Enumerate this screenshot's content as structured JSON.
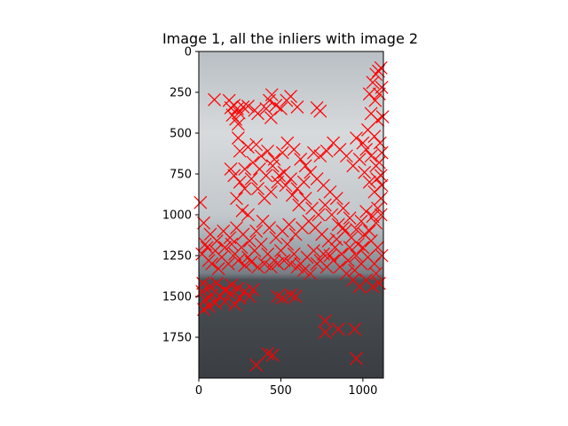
{
  "chart_data": {
    "type": "scatter",
    "title": "Image 1, all the inliers with image 2",
    "xlabel": "",
    "ylabel": "",
    "xlim": [
      0,
      1125
    ],
    "ylim": [
      2000,
      0
    ],
    "y_inverted": true,
    "grid": false,
    "marker": "x",
    "marker_color": "#ff0000",
    "x_ticks": [
      0,
      500,
      1000
    ],
    "x_tick_labels": [
      "0",
      "500",
      "1000"
    ],
    "y_ticks": [
      0,
      250,
      500,
      750,
      1000,
      1250,
      1500,
      1750
    ],
    "y_tick_labels": [
      "0",
      "250",
      "500",
      "750",
      "1000",
      "1250",
      "1500",
      "1750"
    ],
    "background_image": {
      "description": "photo",
      "sky_color": "#c9ced1",
      "horizon_color": "#8e959c",
      "ground_color": "#3f4347"
    },
    "series": [
      {
        "points": [
          [
            95,
            295
          ],
          [
            185,
            300
          ],
          [
            195,
            345
          ],
          [
            215,
            330
          ],
          [
            235,
            350
          ],
          [
            245,
            375
          ],
          [
            205,
            390
          ],
          [
            225,
            415
          ],
          [
            240,
            445
          ],
          [
            270,
            340
          ],
          [
            300,
            335
          ],
          [
            340,
            360
          ],
          [
            360,
            380
          ],
          [
            410,
            350
          ],
          [
            430,
            300
          ],
          [
            445,
            265
          ],
          [
            470,
            330
          ],
          [
            500,
            350
          ],
          [
            440,
            405
          ],
          [
            535,
            300
          ],
          [
            560,
            275
          ],
          [
            600,
            340
          ],
          [
            720,
            345
          ],
          [
            740,
            365
          ],
          [
            1080,
            140
          ],
          [
            1095,
            120
          ],
          [
            1110,
            100
          ],
          [
            1060,
            190
          ],
          [
            1040,
            260
          ],
          [
            1075,
            300
          ],
          [
            1100,
            260
          ],
          [
            1115,
            220
          ],
          [
            1050,
            380
          ],
          [
            1090,
            420
          ],
          [
            1120,
            400
          ],
          [
            1030,
            480
          ],
          [
            1070,
            520
          ],
          [
            1105,
            560
          ],
          [
            1000,
            560
          ],
          [
            960,
            530
          ],
          [
            240,
            530
          ],
          [
            300,
            585
          ],
          [
            250,
            610
          ],
          [
            195,
            720
          ],
          [
            215,
            760
          ],
          [
            250,
            800
          ],
          [
            280,
            840
          ],
          [
            230,
            900
          ],
          [
            265,
            975
          ],
          [
            300,
            1000
          ],
          [
            350,
            570
          ],
          [
            380,
            640
          ],
          [
            420,
            610
          ],
          [
            460,
            660
          ],
          [
            510,
            620
          ],
          [
            540,
            560
          ],
          [
            580,
            600
          ],
          [
            620,
            660
          ],
          [
            650,
            700
          ],
          [
            700,
            620
          ],
          [
            740,
            640
          ],
          [
            780,
            610
          ],
          [
            820,
            560
          ],
          [
            860,
            600
          ],
          [
            900,
            640
          ],
          [
            940,
            700
          ],
          [
            980,
            660
          ],
          [
            1010,
            740
          ],
          [
            1040,
            800
          ],
          [
            1070,
            860
          ],
          [
            1110,
            900
          ],
          [
            1090,
            960
          ],
          [
            1060,
            1010
          ],
          [
            1020,
            980
          ],
          [
            990,
            1040
          ],
          [
            960,
            1090
          ],
          [
            920,
            1020
          ],
          [
            880,
            960
          ],
          [
            840,
            900
          ],
          [
            800,
            860
          ],
          [
            760,
            820
          ],
          [
            720,
            780
          ],
          [
            680,
            740
          ],
          [
            640,
            800
          ],
          [
            600,
            840
          ],
          [
            560,
            780
          ],
          [
            520,
            740
          ],
          [
            480,
            800
          ],
          [
            440,
            860
          ],
          [
            400,
            900
          ],
          [
            360,
            840
          ],
          [
            320,
            780
          ],
          [
            280,
            720
          ],
          [
            330,
            680
          ],
          [
            370,
            720
          ],
          [
            410,
            760
          ],
          [
            450,
            700
          ],
          [
            490,
            760
          ],
          [
            530,
            820
          ],
          [
            570,
            880
          ],
          [
            610,
            940
          ],
          [
            650,
            900
          ],
          [
            690,
            960
          ],
          [
            730,
            1000
          ],
          [
            770,
            940
          ],
          [
            810,
            1000
          ],
          [
            850,
            1060
          ],
          [
            890,
            1100
          ],
          [
            930,
            1140
          ],
          [
            970,
            1180
          ],
          [
            1010,
            1120
          ],
          [
            1050,
            1160
          ],
          [
            1090,
            1200
          ],
          [
            1115,
            1250
          ],
          [
            1070,
            1300
          ],
          [
            1030,
            1260
          ],
          [
            990,
            1300
          ],
          [
            950,
            1340
          ],
          [
            910,
            1280
          ],
          [
            870,
            1240
          ],
          [
            830,
            1200
          ],
          [
            790,
            1160
          ],
          [
            750,
            1120
          ],
          [
            710,
            1080
          ],
          [
            670,
            1040
          ],
          [
            630,
            1080
          ],
          [
            590,
            1120
          ],
          [
            550,
            1060
          ],
          [
            510,
            1100
          ],
          [
            470,
            1140
          ],
          [
            430,
            1080
          ],
          [
            390,
            1040
          ],
          [
            350,
            1100
          ],
          [
            310,
            1160
          ],
          [
            270,
            1120
          ],
          [
            230,
            1080
          ],
          [
            190,
            1140
          ],
          [
            150,
            1100
          ],
          [
            110,
            1160
          ],
          [
            70,
            1120
          ],
          [
            40,
            1180
          ],
          [
            20,
            1240
          ],
          [
            60,
            1280
          ],
          [
            100,
            1220
          ],
          [
            140,
            1260
          ],
          [
            180,
            1300
          ],
          [
            220,
            1240
          ],
          [
            260,
            1200
          ],
          [
            300,
            1260
          ],
          [
            340,
            1220
          ],
          [
            380,
            1180
          ],
          [
            420,
            1240
          ],
          [
            460,
            1280
          ],
          [
            500,
            1220
          ],
          [
            540,
            1180
          ],
          [
            580,
            1240
          ],
          [
            620,
            1300
          ],
          [
            660,
            1260
          ],
          [
            700,
            1220
          ],
          [
            740,
            1280
          ],
          [
            780,
            1320
          ],
          [
            820,
            1280
          ],
          [
            860,
            1320
          ],
          [
            900,
            1360
          ],
          [
            940,
            1400
          ],
          [
            980,
            1440
          ],
          [
            1020,
            1400
          ],
          [
            1060,
            1440
          ],
          [
            1100,
            1420
          ],
          [
            1080,
            1360
          ],
          [
            10,
            925
          ],
          [
            30,
            1050
          ],
          [
            50,
            1200
          ],
          [
            80,
            1300
          ],
          [
            120,
            1330
          ],
          [
            160,
            1200
          ],
          [
            200,
            1180
          ],
          [
            240,
            1280
          ],
          [
            280,
            1310
          ],
          [
            320,
            1290
          ],
          [
            360,
            1320
          ],
          [
            400,
            1300
          ],
          [
            440,
            1320
          ],
          [
            480,
            1300
          ],
          [
            520,
            1280
          ],
          [
            560,
            1300
          ],
          [
            600,
            1320
          ],
          [
            640,
            1340
          ],
          [
            680,
            1360
          ],
          [
            720,
            1300
          ],
          [
            760,
            1240
          ],
          [
            800,
            1250
          ],
          [
            840,
            1150
          ],
          [
            880,
            1080
          ],
          [
            920,
            1200
          ],
          [
            960,
            1250
          ],
          [
            1000,
            1200
          ],
          [
            1040,
            1100
          ],
          [
            1080,
            1050
          ],
          [
            1110,
            1000
          ],
          [
            1110,
            760
          ],
          [
            1080,
            700
          ],
          [
            1050,
            640
          ],
          [
            1020,
            600
          ],
          [
            1115,
            620
          ],
          [
            1100,
            680
          ],
          [
            1115,
            820
          ],
          [
            1085,
            780
          ],
          [
            20,
            1470
          ],
          [
            40,
            1520
          ],
          [
            60,
            1560
          ],
          [
            30,
            1580
          ],
          [
            80,
            1490
          ],
          [
            100,
            1540
          ],
          [
            130,
            1500
          ],
          [
            160,
            1530
          ],
          [
            190,
            1480
          ],
          [
            220,
            1550
          ],
          [
            250,
            1510
          ],
          [
            280,
            1470
          ],
          [
            310,
            1500
          ],
          [
            330,
            1460
          ],
          [
            480,
            1500
          ],
          [
            510,
            1510
          ],
          [
            560,
            1490
          ],
          [
            590,
            1500
          ],
          [
            25,
            1420
          ],
          [
            70,
            1440
          ],
          [
            110,
            1420
          ],
          [
            160,
            1460
          ],
          [
            200,
            1430
          ],
          [
            240,
            1450
          ],
          [
            770,
            1650
          ],
          [
            770,
            1720
          ],
          [
            850,
            1700
          ],
          [
            950,
            1700
          ],
          [
            350,
            1920
          ],
          [
            420,
            1850
          ],
          [
            450,
            1860
          ],
          [
            960,
            1880
          ]
        ]
      }
    ]
  }
}
